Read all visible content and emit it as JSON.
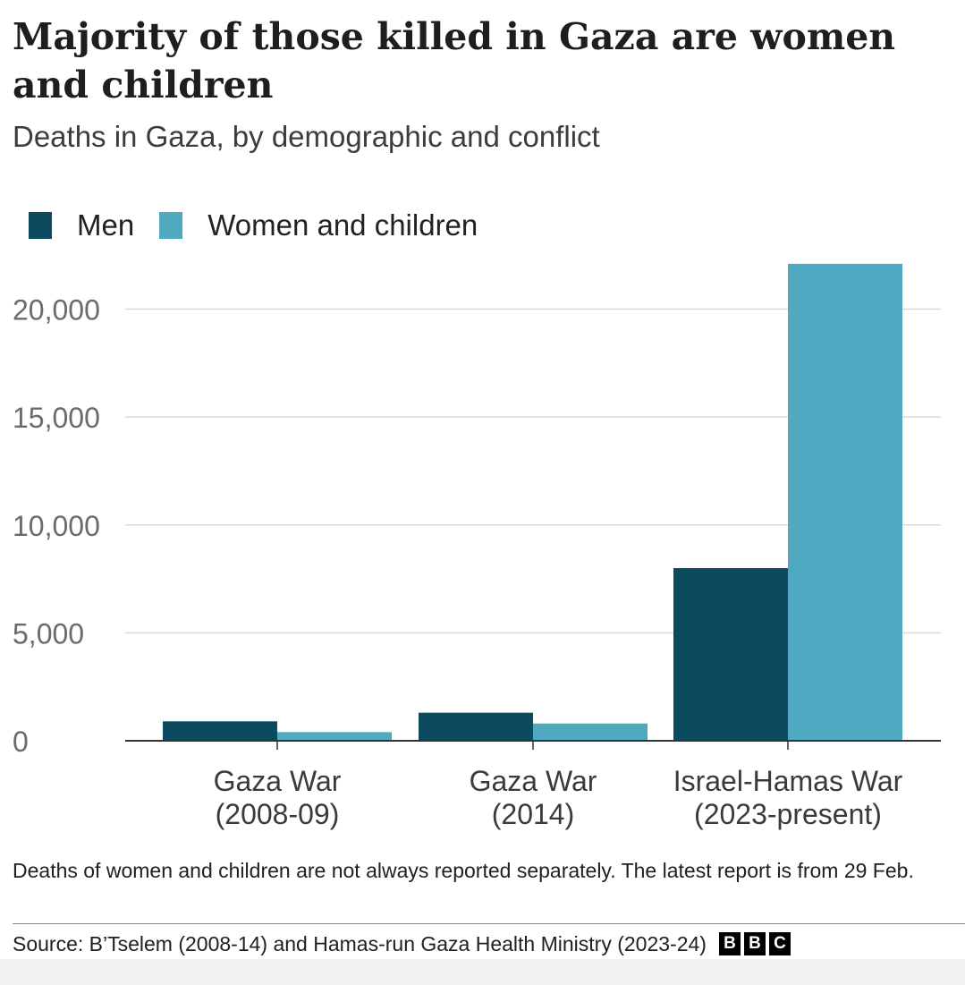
{
  "chart_data": {
    "type": "bar",
    "title": "Majority of those killed in Gaza are women and children",
    "subtitle": "Deaths in Gaza, by demographic and conflict",
    "categories": [
      [
        "Gaza War",
        "(2008-09)"
      ],
      [
        "Gaza War",
        "(2014)"
      ],
      [
        "Israel-Hamas War",
        "(2023-present)"
      ]
    ],
    "series": [
      {
        "name": "Men",
        "values": [
          900,
          1300,
          8000
        ],
        "color": "#0c4b5f"
      },
      {
        "name": "Women and children",
        "values": [
          400,
          800,
          22100
        ],
        "color": "#4ea9c1"
      }
    ],
    "ylim": [
      0,
      22500
    ],
    "yticks": [
      0,
      5000,
      10000,
      15000,
      20000
    ],
    "ytick_labels": [
      "0",
      "5,000",
      "10,000",
      "15,000",
      "20,000"
    ],
    "grid": true,
    "legend_position": "top-left",
    "note": "Deaths of women and children are not always reported separately. The latest report is from 29 Feb.",
    "source": "Source: B’Tselem (2008-14) and Hamas-run Gaza Health Ministry (2023-24)",
    "logo": "BBC"
  }
}
